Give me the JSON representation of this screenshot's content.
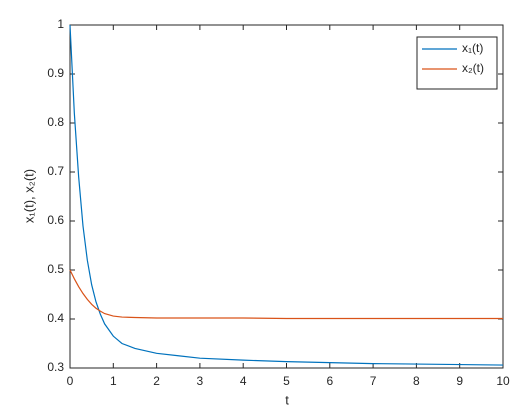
{
  "chart_data": {
    "type": "line",
    "xlabel": "t",
    "ylabel": "x₁(t), x₂(t)",
    "x": [
      0,
      0.1,
      0.2,
      0.3,
      0.4,
      0.5,
      0.6,
      0.7,
      0.8,
      1.0,
      1.2,
      1.5,
      2,
      2.5,
      3,
      4,
      5,
      6,
      7,
      8,
      9,
      10
    ],
    "series": [
      {
        "name": "x₁(t)",
        "color": "#0072bd",
        "values": [
          1.0,
          0.82,
          0.69,
          0.59,
          0.52,
          0.47,
          0.435,
          0.41,
          0.39,
          0.365,
          0.35,
          0.34,
          0.33,
          0.325,
          0.32,
          0.316,
          0.313,
          0.311,
          0.309,
          0.308,
          0.307,
          0.306
        ]
      },
      {
        "name": "x₂(t)",
        "color": "#d95319",
        "values": [
          0.5,
          0.482,
          0.466,
          0.452,
          0.44,
          0.43,
          0.422,
          0.416,
          0.411,
          0.406,
          0.404,
          0.403,
          0.402,
          0.402,
          0.402,
          0.402,
          0.401,
          0.401,
          0.401,
          0.401,
          0.401,
          0.401
        ]
      }
    ],
    "xlim": [
      0,
      10
    ],
    "xticks": [
      0,
      1,
      2,
      3,
      4,
      5,
      6,
      7,
      8,
      9,
      10
    ],
    "ylim": [
      0.3,
      1
    ],
    "yticks": [
      0.3,
      0.4,
      0.5,
      0.6,
      0.7,
      0.8,
      0.9,
      1
    ],
    "grid": false,
    "legend": "northeast"
  }
}
